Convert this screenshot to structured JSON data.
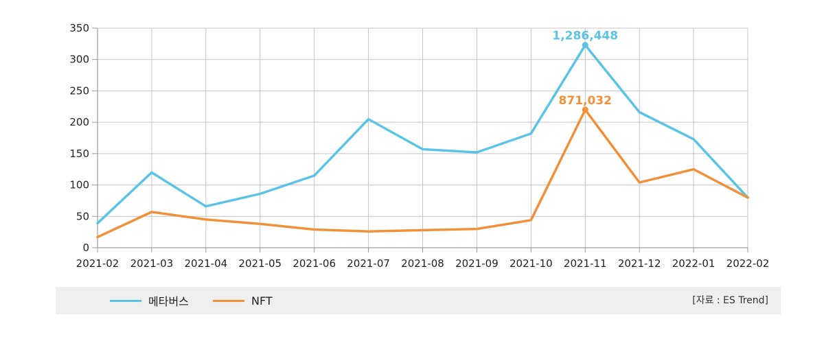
{
  "chart_data": {
    "type": "line",
    "categories": [
      "2021-02",
      "2021-03",
      "2021-04",
      "2021-05",
      "2021-06",
      "2021-07",
      "2021-08",
      "2021-09",
      "2021-10",
      "2021-11",
      "2021-12",
      "2022-01",
      "2022-02"
    ],
    "ylim": [
      0,
      350
    ],
    "yticks": [
      0,
      50,
      100,
      150,
      200,
      250,
      300,
      350
    ],
    "grid": true,
    "legend_position": "bottom-left",
    "series": [
      {
        "name": "메타버스",
        "color": "#5bc4e6",
        "values": [
          39,
          120,
          66,
          86,
          115,
          205,
          157,
          152,
          182,
          323,
          216,
          173,
          80
        ],
        "annotation": {
          "index": 9,
          "text": "1,286,448"
        }
      },
      {
        "name": "NFT",
        "color": "#f0913a",
        "values": [
          17,
          57,
          45,
          38,
          29,
          26,
          28,
          30,
          44,
          220,
          104,
          125,
          80
        ],
        "annotation": {
          "index": 9,
          "text": "871,032"
        }
      }
    ]
  },
  "source": "[자료 : ES Trend]"
}
